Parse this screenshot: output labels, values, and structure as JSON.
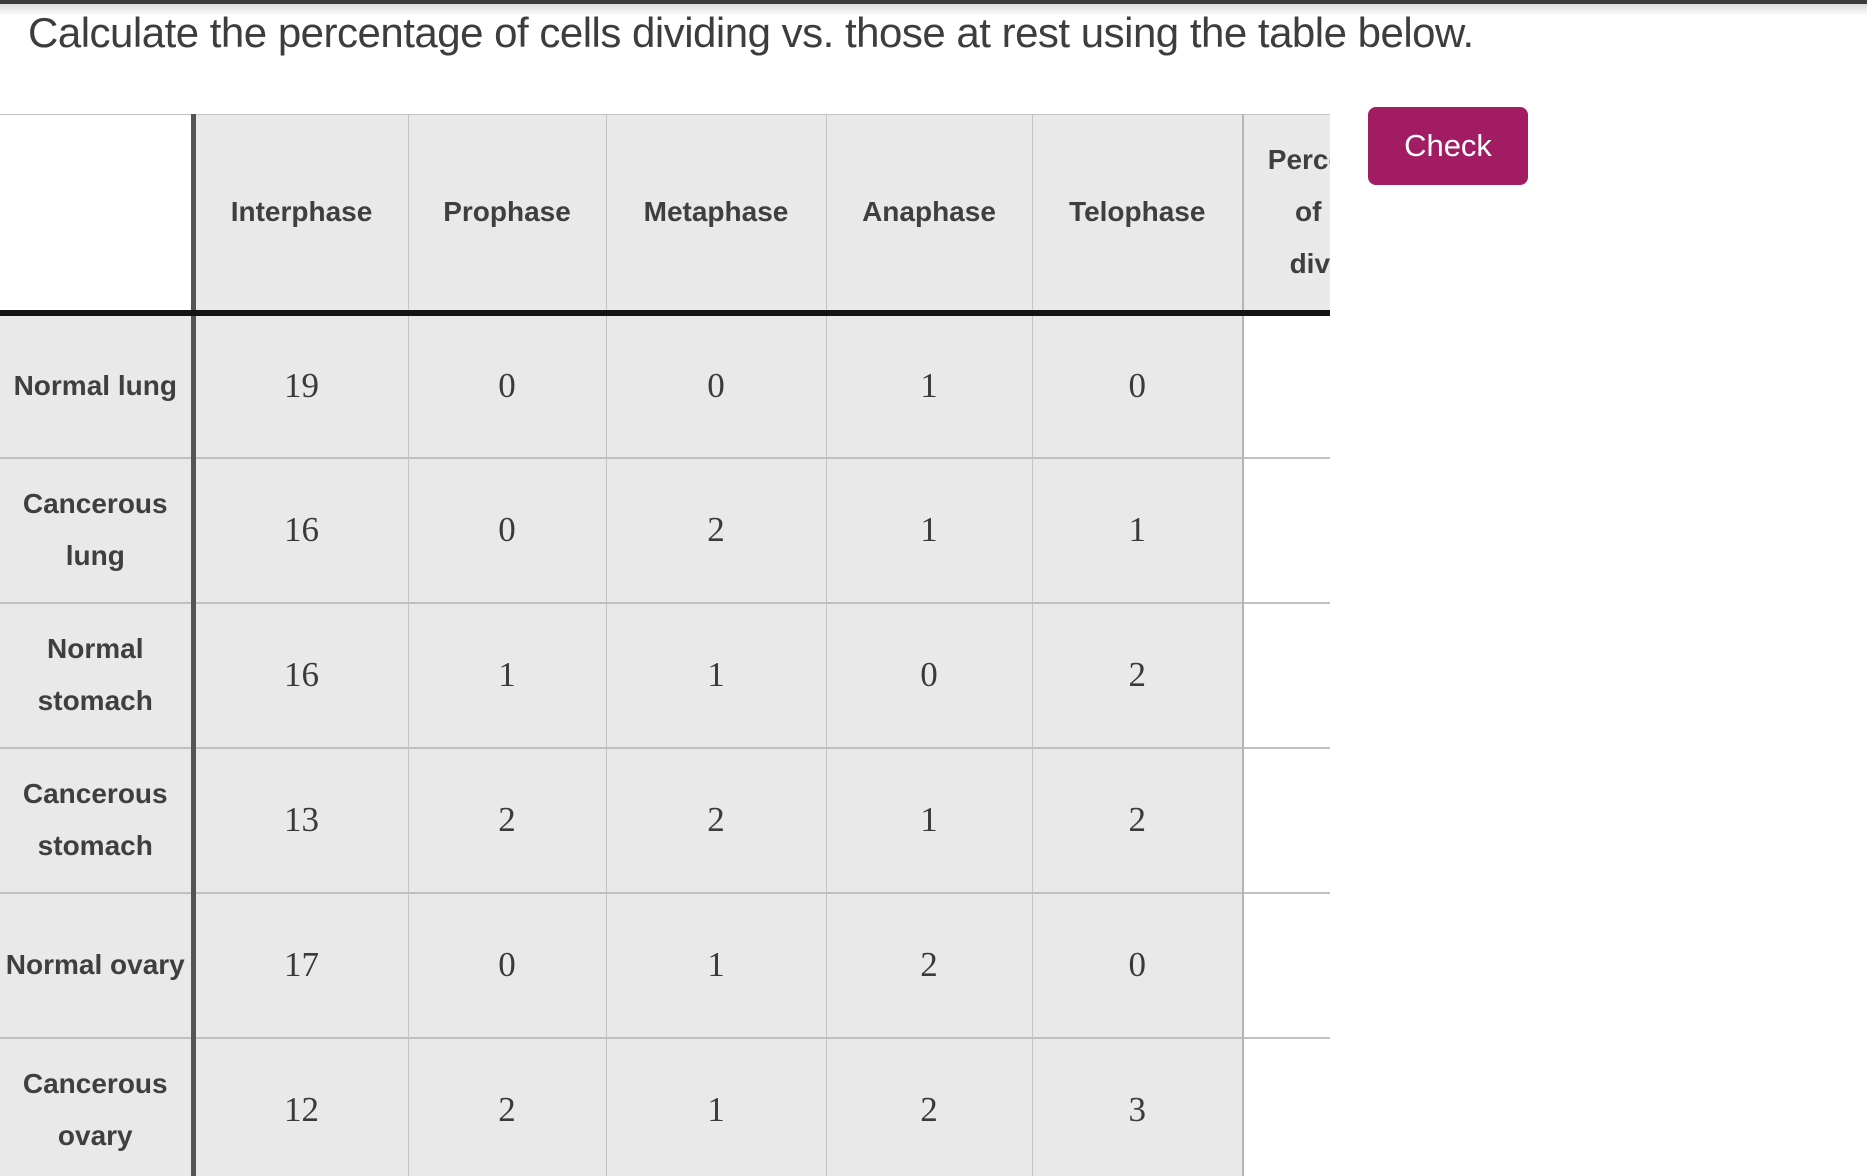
{
  "page": {
    "title": "Calculate the percentage of cells dividing vs. those at rest using the table below."
  },
  "check_button": {
    "label": "Check"
  },
  "colors": {
    "accent_button": "#a11c63",
    "cell_background": "#e9e9e9",
    "grid_line": "#c4c4c4",
    "header_rule": "#141414",
    "text": "#3f3f3f"
  },
  "table": {
    "corner_label": "",
    "column_headers": {
      "interphase": "Interphase",
      "prophase": "Prophase",
      "metaphase": "Metaphase",
      "anaphase": "Anaphase",
      "telophase": "Telophase",
      "percentage_dividing": "Percentage of cells dividing"
    },
    "rows": [
      {
        "label": "Normal lung",
        "values": [
          19,
          0,
          0,
          1,
          0
        ],
        "percentage": ""
      },
      {
        "label": "Cancerous lung",
        "values": [
          16,
          0,
          2,
          1,
          1
        ],
        "percentage": ""
      },
      {
        "label": "Normal stomach",
        "values": [
          16,
          1,
          1,
          0,
          2
        ],
        "percentage": ""
      },
      {
        "label": "Cancerous stomach",
        "values": [
          13,
          2,
          2,
          1,
          2
        ],
        "percentage": ""
      },
      {
        "label": "Normal ovary",
        "values": [
          17,
          0,
          1,
          2,
          0
        ],
        "percentage": ""
      },
      {
        "label": "Cancerous ovary",
        "values": [
          12,
          2,
          1,
          2,
          3
        ],
        "percentage": ""
      }
    ]
  }
}
